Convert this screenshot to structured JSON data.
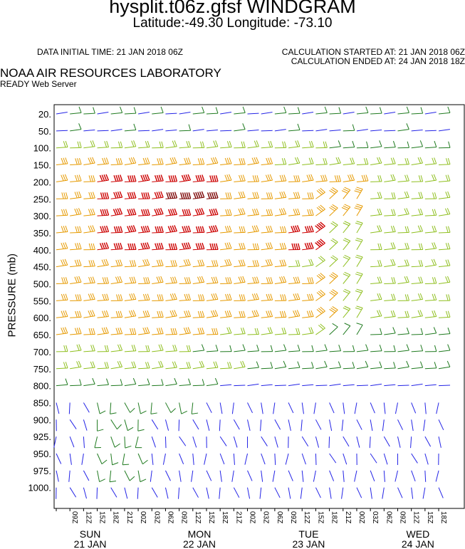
{
  "header": {
    "title": "hysplit.t06z.gfsf WINDGRAM",
    "subtitle": "Latitude:-49.30 Longitude: -73.10",
    "data_initial_time": "DATA INITIAL TIME: 21 JAN 2018 06Z",
    "calc_started": "CALCULATION STARTED AT: 21 JAN 2018 06Z",
    "calc_ended": "CALCULATION ENDED AT: 24 JAN 2018 18Z",
    "lab_name": "NOAA AIR RESOURCES LABORATORY",
    "lab_server": "READY Web Server"
  },
  "colors": {
    "blue": "#2323e6",
    "dark_green": "#1f7a1f",
    "lime": "#8fbf1f",
    "orange": "#e69a00",
    "red": "#cc0000",
    "dark_red": "#7a0000"
  },
  "chart_data": {
    "type": "windgram",
    "ylabel": "PRESSURE (mb)",
    "pressure_levels": [
      "20.",
      "50.",
      "100.",
      "150.",
      "200.",
      "250.",
      "300.",
      "350.",
      "400.",
      "450.",
      "500.",
      "550.",
      "600.",
      "650.",
      "700.",
      "750.",
      "800.",
      "850.",
      "900.",
      "925.",
      "950.",
      "975.",
      "1000."
    ],
    "time_labels": [
      "09Z",
      "12Z",
      "15Z",
      "18Z",
      "21Z",
      "00Z",
      "03Z",
      "06Z",
      "09Z",
      "12Z",
      "15Z",
      "18Z",
      "21Z",
      "00Z",
      "03Z",
      "06Z",
      "09Z",
      "12Z",
      "15Z",
      "18Z",
      "21Z",
      "00Z",
      "03Z",
      "06Z",
      "09Z",
      "12Z",
      "15Z",
      "18Z"
    ],
    "days": [
      {
        "weekday": "SUN",
        "date": "21 JAN"
      },
      {
        "weekday": "MON",
        "date": "22 JAN"
      },
      {
        "weekday": "TUE",
        "date": "23 JAN"
      },
      {
        "weekday": "WED",
        "date": "24 JAN"
      }
    ],
    "time_step_hours": 3,
    "n_columns": 29,
    "color_legend": "blue < dark green < lime < orange < red < dark red (increasing wind speed)"
  }
}
